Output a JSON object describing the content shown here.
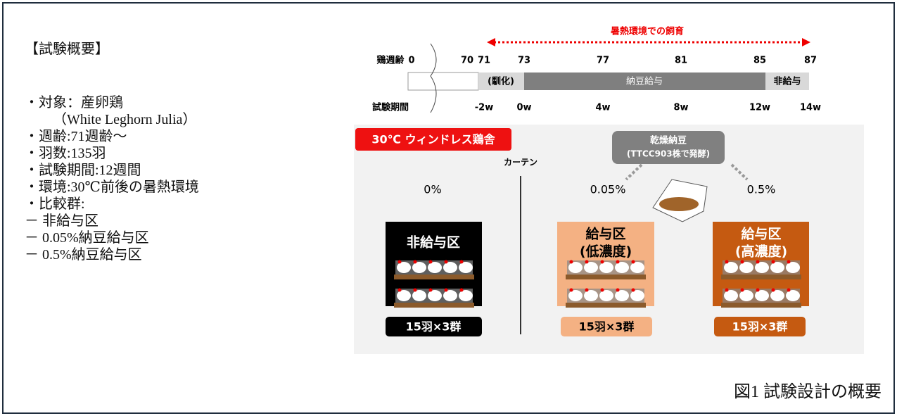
{
  "overview": {
    "heading": "【試験概要】",
    "items": [
      "・対象：産卵鶏",
      "（White Leghorn Julia）",
      "・週齢:71週齢～",
      "・羽数:135羽",
      "・試験期間:12週間",
      "・環境:30℃前後の暑熱環境",
      "・比較群:",
      "－ 非給与区",
      "－ 0.05%納豆給与区",
      "－ 0.5%納豆給与区"
    ]
  },
  "timeline": {
    "banner": "暑熱環境での飼育",
    "age_label": "鶏週齢",
    "ages": [
      0,
      70,
      71,
      73,
      77,
      81,
      85,
      87
    ],
    "phases": [
      "(馴化)",
      "納豆給与",
      "非給与"
    ],
    "period_label": "試験期間",
    "periods": [
      "-2w",
      "0w",
      "4w",
      "8w",
      "12w",
      "14w"
    ]
  },
  "house": {
    "label": "30℃ ウィンドレス鶏舎",
    "curtain": "カーテン",
    "natto": [
      "乾燥納豆",
      "(TTCC903株で発酵)"
    ],
    "groups": [
      {
        "pct": "0%",
        "name": [
          "非給与区"
        ],
        "count": "15羽×3群"
      },
      {
        "pct": "0.05%",
        "name": [
          "給与区",
          "(低濃度)"
        ],
        "count": "15羽×3群"
      },
      {
        "pct": "0.5%",
        "name": [
          "給与区",
          "(高濃度)"
        ],
        "count": "15羽×3群"
      }
    ]
  },
  "caption": "図1  試験設計の概要"
}
